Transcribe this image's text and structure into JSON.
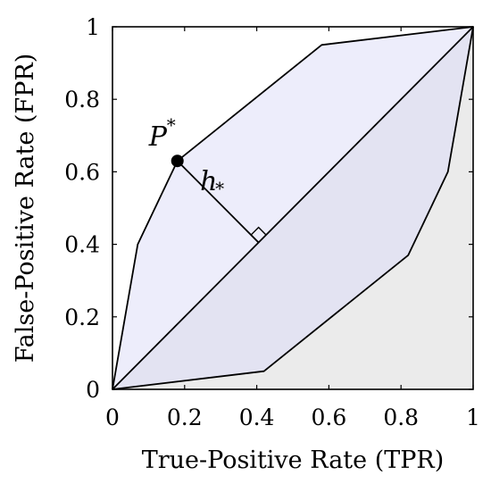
{
  "colors": {
    "upper_region": "#ededfb",
    "lower_region": "#e3e3f2",
    "below_region": "#ebebeb",
    "line": "#000000"
  },
  "chart_data": {
    "type": "line",
    "xlabel": "True-Positive Rate (TPR)",
    "ylabel": "False-Positive Rate (FPR)",
    "xlim": [
      0,
      1
    ],
    "ylim": [
      0,
      1
    ],
    "xticks": [
      "0",
      "0.2",
      "0.4",
      "0.6",
      "0.8",
      "1"
    ],
    "yticks": [
      "0",
      "0.2",
      "0.4",
      "0.6",
      "0.8",
      "1"
    ],
    "grid": false,
    "series": [
      {
        "x": [
          0,
          0.07,
          0.18,
          0.58,
          1
        ],
        "y": [
          0,
          0.4,
          0.63,
          0.95,
          1
        ]
      },
      {
        "x": [
          0,
          0.42,
          0.82,
          0.93,
          1
        ],
        "y": [
          0,
          0.05,
          0.37,
          0.6,
          1
        ]
      },
      {
        "x": [
          0,
          1
        ],
        "y": [
          0,
          1
        ]
      }
    ],
    "point": {
      "x": 0.18,
      "y": 0.63,
      "label": "P",
      "label_sup": "*"
    },
    "distance": {
      "from": [
        0.18,
        0.63
      ],
      "to": [
        0.405,
        0.405
      ],
      "label": "h",
      "label_sub": "*"
    }
  }
}
